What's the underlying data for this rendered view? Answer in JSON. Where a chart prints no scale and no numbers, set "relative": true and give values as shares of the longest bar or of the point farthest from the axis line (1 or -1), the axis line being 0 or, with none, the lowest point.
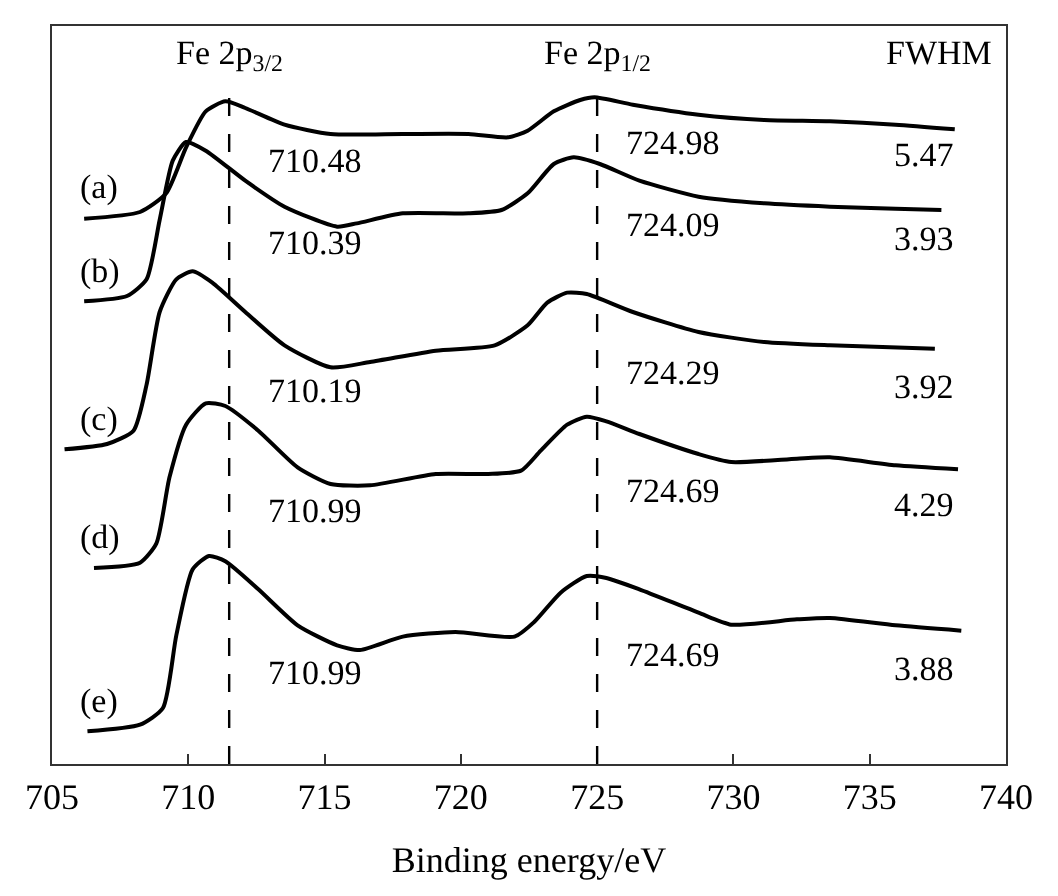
{
  "chart_data": {
    "type": "line",
    "relative": true,
    "xlabel": "Binding energy/eV",
    "xlim": [
      705,
      740
    ],
    "xticks": [
      705,
      710,
      715,
      720,
      725,
      730,
      735,
      740
    ],
    "legend": false,
    "marker": "none",
    "line_style": "solid",
    "color": "#000000",
    "series": [
      {
        "name": "(a)",
        "x": [
          706.18,
          708.23,
          709.19,
          709.92,
          710.64,
          711.36,
          712.09,
          713.53,
          715.22,
          717.87,
          720.28,
          721.73,
          722.45,
          723.41,
          724.38,
          724.9,
          726.31,
          728.72,
          731.13,
          733.54,
          735.95,
          738.12
        ],
        "values": [
          0.818,
          0.828,
          0.856,
          0.925,
          0.979,
          0.994,
          0.984,
          0.959,
          0.945,
          0.945,
          0.945,
          0.94,
          0.95,
          0.979,
          0.996,
          1.0,
          0.989,
          0.974,
          0.966,
          0.964,
          0.959,
          0.952
        ]
      },
      {
        "name": "(b)",
        "x": [
          706.18,
          707.75,
          708.47,
          708.95,
          709.43,
          709.92,
          710.64,
          712.09,
          713.53,
          715.46,
          716.18,
          717.87,
          720.28,
          721.49,
          722.45,
          723.41,
          724.14,
          725.1,
          726.55,
          728.72,
          731.13,
          733.54,
          735.95,
          737.63
        ],
        "values": [
          0.694,
          0.702,
          0.727,
          0.816,
          0.905,
          0.933,
          0.92,
          0.875,
          0.836,
          0.806,
          0.811,
          0.826,
          0.826,
          0.831,
          0.856,
          0.9,
          0.91,
          0.9,
          0.875,
          0.851,
          0.841,
          0.836,
          0.833,
          0.831
        ]
      },
      {
        "name": "(c)",
        "x": [
          705.46,
          707.02,
          707.99,
          708.47,
          708.95,
          709.56,
          710.16,
          710.88,
          712.09,
          713.53,
          715.22,
          716.67,
          719.08,
          721.24,
          722.45,
          723.17,
          723.9,
          724.62,
          726.31,
          728.72,
          731.13,
          733.54,
          737.39
        ],
        "values": [
          0.472,
          0.48,
          0.5,
          0.569,
          0.678,
          0.727,
          0.739,
          0.722,
          0.678,
          0.628,
          0.595,
          0.603,
          0.62,
          0.628,
          0.658,
          0.692,
          0.707,
          0.705,
          0.678,
          0.648,
          0.633,
          0.628,
          0.623
        ]
      },
      {
        "name": "(d)",
        "x": [
          706.54,
          708.23,
          708.83,
          709.31,
          709.92,
          710.64,
          711.36,
          712.57,
          714.01,
          715.22,
          716.67,
          719.08,
          721.0,
          722.21,
          722.93,
          723.9,
          724.62,
          725.34,
          726.55,
          728.72,
          729.92,
          732.33,
          733.54,
          735.95,
          738.24
        ],
        "values": [
          0.294,
          0.302,
          0.331,
          0.43,
          0.509,
          0.541,
          0.537,
          0.5,
          0.445,
          0.42,
          0.418,
          0.435,
          0.435,
          0.44,
          0.47,
          0.509,
          0.521,
          0.514,
          0.495,
          0.465,
          0.453,
          0.458,
          0.46,
          0.448,
          0.442
        ]
      },
      {
        "name": "(e)",
        "x": [
          706.3,
          708.23,
          709.07,
          709.56,
          710.16,
          710.76,
          711.36,
          712.57,
          714.01,
          715.46,
          716.3,
          717.87,
          719.8,
          721.97,
          722.69,
          723.66,
          724.62,
          725.34,
          726.55,
          728.72,
          729.92,
          732.33,
          733.54,
          735.95,
          738.36
        ],
        "values": [
          0.049,
          0.059,
          0.084,
          0.193,
          0.292,
          0.312,
          0.304,
          0.262,
          0.208,
          0.178,
          0.171,
          0.191,
          0.198,
          0.191,
          0.213,
          0.257,
          0.282,
          0.279,
          0.262,
          0.227,
          0.209,
          0.217,
          0.219,
          0.208,
          0.2
        ]
      }
    ],
    "ref_lines": [
      {
        "axis": "x",
        "value": 711.5,
        "label": "Fe 2p$_{3/2}$",
        "line_style": "dashed"
      },
      {
        "axis": "x",
        "value": 725,
        "label": "Fe 2p$_{1/2}$",
        "line_style": "dashed"
      }
    ],
    "annotations": [
      "FWHM",
      "710.48",
      "724.98",
      "5.47",
      "710.39",
      "724.09",
      "3.93",
      "710.19",
      "724.29",
      "3.92",
      "710.99",
      "724.69",
      "4.29",
      "710.99",
      "724.69",
      "3.88"
    ]
  }
}
